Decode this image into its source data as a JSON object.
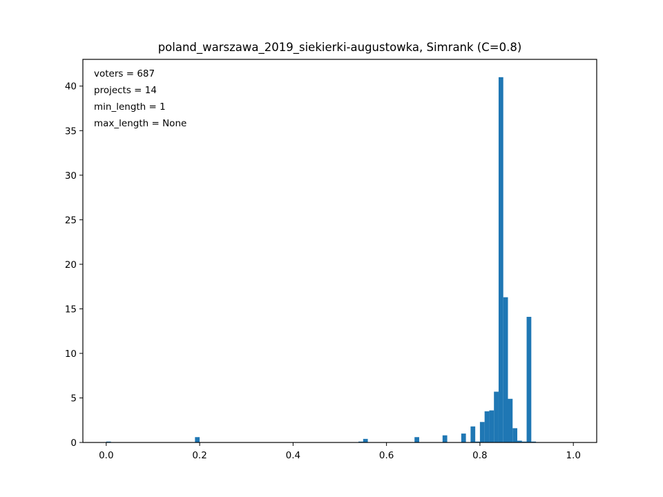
{
  "chart_data": {
    "type": "bar",
    "title": "poland_warszawa_2019_siekierki-augustowka, Simrank (C=0.8)",
    "xlabel": "",
    "ylabel": "",
    "xlim": [
      -0.05,
      1.05
    ],
    "ylim": [
      0,
      43
    ],
    "bin_width": 0.01,
    "x_ticks": [
      "0.0",
      "0.2",
      "0.4",
      "0.6",
      "0.8",
      "1.0"
    ],
    "y_ticks": [
      "0",
      "5",
      "10",
      "15",
      "20",
      "25",
      "30",
      "35",
      "40"
    ],
    "annotations": [
      "voters = 687",
      "projects = 14",
      "min_length = 1",
      "max_length = None"
    ],
    "bar_color": "#1f77b4",
    "grid": false,
    "bins": [
      {
        "x": 0.0,
        "value": 0.1
      },
      {
        "x": 0.19,
        "value": 0.6
      },
      {
        "x": 0.54,
        "value": 0.1
      },
      {
        "x": 0.55,
        "value": 0.4
      },
      {
        "x": 0.66,
        "value": 0.6
      },
      {
        "x": 0.72,
        "value": 0.8
      },
      {
        "x": 0.76,
        "value": 1.0
      },
      {
        "x": 0.78,
        "value": 1.8
      },
      {
        "x": 0.79,
        "value": 0.1
      },
      {
        "x": 0.8,
        "value": 2.3
      },
      {
        "x": 0.81,
        "value": 3.5
      },
      {
        "x": 0.82,
        "value": 3.6
      },
      {
        "x": 0.83,
        "value": 5.7
      },
      {
        "x": 0.84,
        "value": 41.0
      },
      {
        "x": 0.85,
        "value": 16.3
      },
      {
        "x": 0.86,
        "value": 4.9
      },
      {
        "x": 0.87,
        "value": 1.6
      },
      {
        "x": 0.88,
        "value": 0.2
      },
      {
        "x": 0.89,
        "value": 0.1
      },
      {
        "x": 0.9,
        "value": 14.1
      },
      {
        "x": 0.91,
        "value": 0.1
      }
    ]
  }
}
